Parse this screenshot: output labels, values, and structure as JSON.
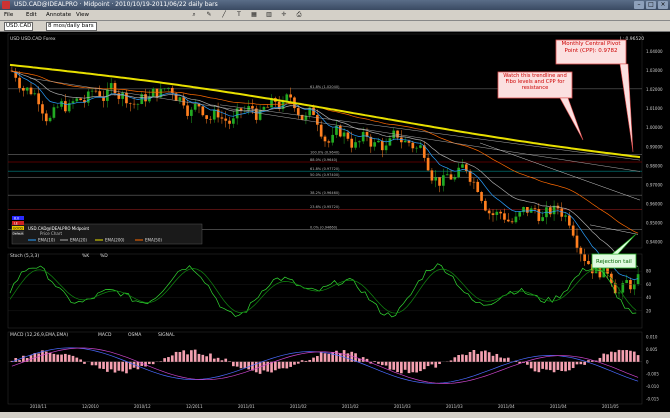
{
  "window": {
    "title": "USD.CAD@IDEALPRO · Midpoint · 2010/10/19-2011/06/22 daily bars"
  },
  "toolbar": {
    "file": "File",
    "edit": "Edit",
    "annotate": "Annotate",
    "view": "View"
  },
  "toolbar2": {
    "symbol": "USD.CAD",
    "period": "8 mos/daily bars"
  },
  "price_panel": {
    "header": "USD USD.CAD Forex",
    "right_label": "L: 0.96520",
    "fib_labels": [
      "61.8% (1.02040)",
      "100.0% (0.9640)",
      "88.0% (0.9640)",
      "61.8% (0.97720)",
      "50.0% (0.97400)",
      "38.2% (0.96460)",
      "23.6% (0.95720)",
      "0.0% (0.94660)"
    ],
    "y_ticks": [
      "1.04000",
      "1.03000",
      "1.02000",
      "1.01000",
      "1.00000",
      "0.99000",
      "0.98000",
      "0.97000",
      "0.96000",
      "0.95000",
      "0.94000"
    ],
    "legend": {
      "title": "USD.CAD@IDEALPRO Midpoint",
      "line2": "Price Chart",
      "items": [
        "EMA(10)",
        "EMA(20)",
        "EMA(200)",
        "EMA(50)"
      ]
    },
    "badges": [
      "8.0",
      "LE",
      "GOOD",
      "Default"
    ]
  },
  "annotations": {
    "cpp": "Monthly Central Pivot Point (CPP): 0.9782",
    "watch": "Watch this trendline and Fibo levels and CPP for resistance",
    "rejection": "Rejection tail"
  },
  "stoch_panel": {
    "label": "Stoch (5,3,3)",
    "legend": [
      "%K",
      "%D"
    ],
    "y_ticks": [
      "80",
      "60",
      "40",
      "20"
    ]
  },
  "macd_panel": {
    "label": "MACD (12,26,9,EMA,EMA)",
    "legend": [
      "MACD",
      "OSMA",
      "SIGNAL"
    ],
    "y_ticks": [
      "0.010",
      "0.005",
      "0",
      "-0.005",
      "-0.010",
      "-0.015"
    ]
  },
  "x_axis": {
    "labels": [
      "2010/11",
      "12/2010",
      "2010/12",
      "12/2011",
      "2011/01",
      "2011/02",
      "2011/02",
      "2011/03",
      "2011/03",
      "2011/04",
      "2011/04",
      "2011/05"
    ]
  },
  "colors": {
    "bull": "#22aa22",
    "bear": "#ff7f1f",
    "ema200": "#e8e000",
    "ema50": "#ff6a00",
    "ema20": "#aaaaaa",
    "ema10": "#2aa0ff",
    "annotation": "#e05050"
  }
}
